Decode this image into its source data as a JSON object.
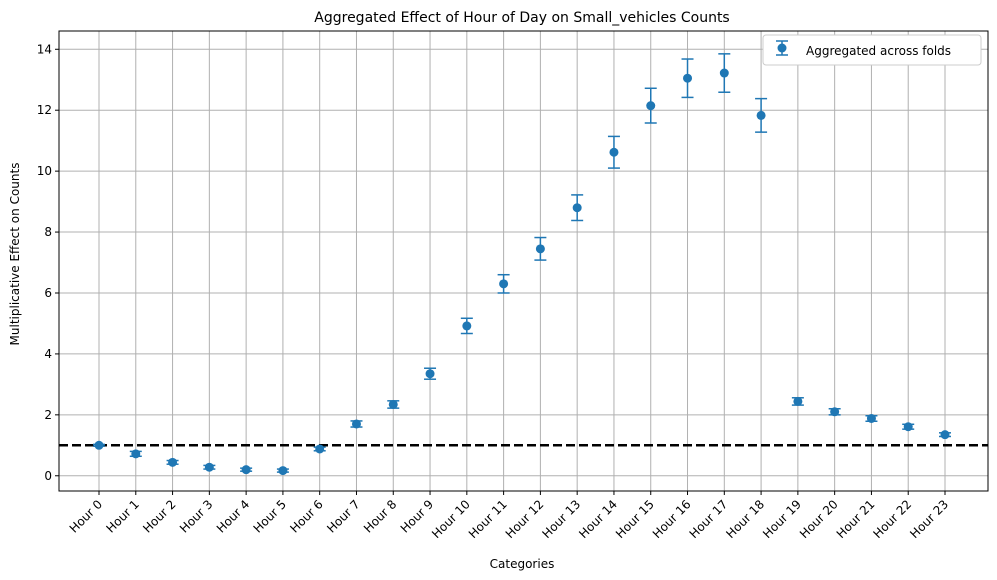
{
  "chart_data": {
    "type": "scatter",
    "title": "Aggregated Effect of Hour of Day on Small_vehicles Counts",
    "xlabel": "Categories",
    "ylabel": "Multiplicative Effect on Counts",
    "categories": [
      "Hour 0",
      "Hour 1",
      "Hour 2",
      "Hour 3",
      "Hour 4",
      "Hour 5",
      "Hour 6",
      "Hour 7",
      "Hour 8",
      "Hour 9",
      "Hour 10",
      "Hour 11",
      "Hour 12",
      "Hour 13",
      "Hour 14",
      "Hour 15",
      "Hour 16",
      "Hour 17",
      "Hour 18",
      "Hour 19",
      "Hour 20",
      "Hour 21",
      "Hour 22",
      "Hour 23"
    ],
    "series": [
      {
        "name": "Aggregated across folds",
        "values": [
          1.0,
          0.72,
          0.44,
          0.28,
          0.2,
          0.17,
          0.88,
          1.7,
          2.34,
          3.35,
          4.92,
          6.3,
          7.45,
          8.8,
          10.62,
          12.15,
          13.05,
          13.22,
          11.83,
          2.44,
          2.1,
          1.88,
          1.61,
          1.35
        ],
        "lower": [
          0.97,
          0.64,
          0.38,
          0.22,
          0.15,
          0.12,
          0.82,
          1.6,
          2.22,
          3.17,
          4.67,
          6.0,
          7.08,
          8.38,
          10.1,
          11.58,
          12.42,
          12.59,
          11.28,
          2.32,
          2.0,
          1.79,
          1.53,
          1.29
        ],
        "upper": [
          1.03,
          0.8,
          0.5,
          0.34,
          0.25,
          0.22,
          0.94,
          1.8,
          2.46,
          3.53,
          5.17,
          6.6,
          7.82,
          9.22,
          11.14,
          12.72,
          13.68,
          13.85,
          12.38,
          2.56,
          2.2,
          1.97,
          1.69,
          1.41
        ]
      }
    ],
    "reference_line": {
      "y": 1.0,
      "style": "dashed",
      "color": "#000000"
    },
    "ylim": [
      -0.5,
      14.6
    ],
    "yticks": [
      0,
      2,
      4,
      6,
      8,
      10,
      12,
      14
    ],
    "grid": true,
    "legend_placement": "top-right",
    "colors": {
      "series": "#1f77b4",
      "grid": "#b0b0b0",
      "axes": "#000000"
    }
  }
}
